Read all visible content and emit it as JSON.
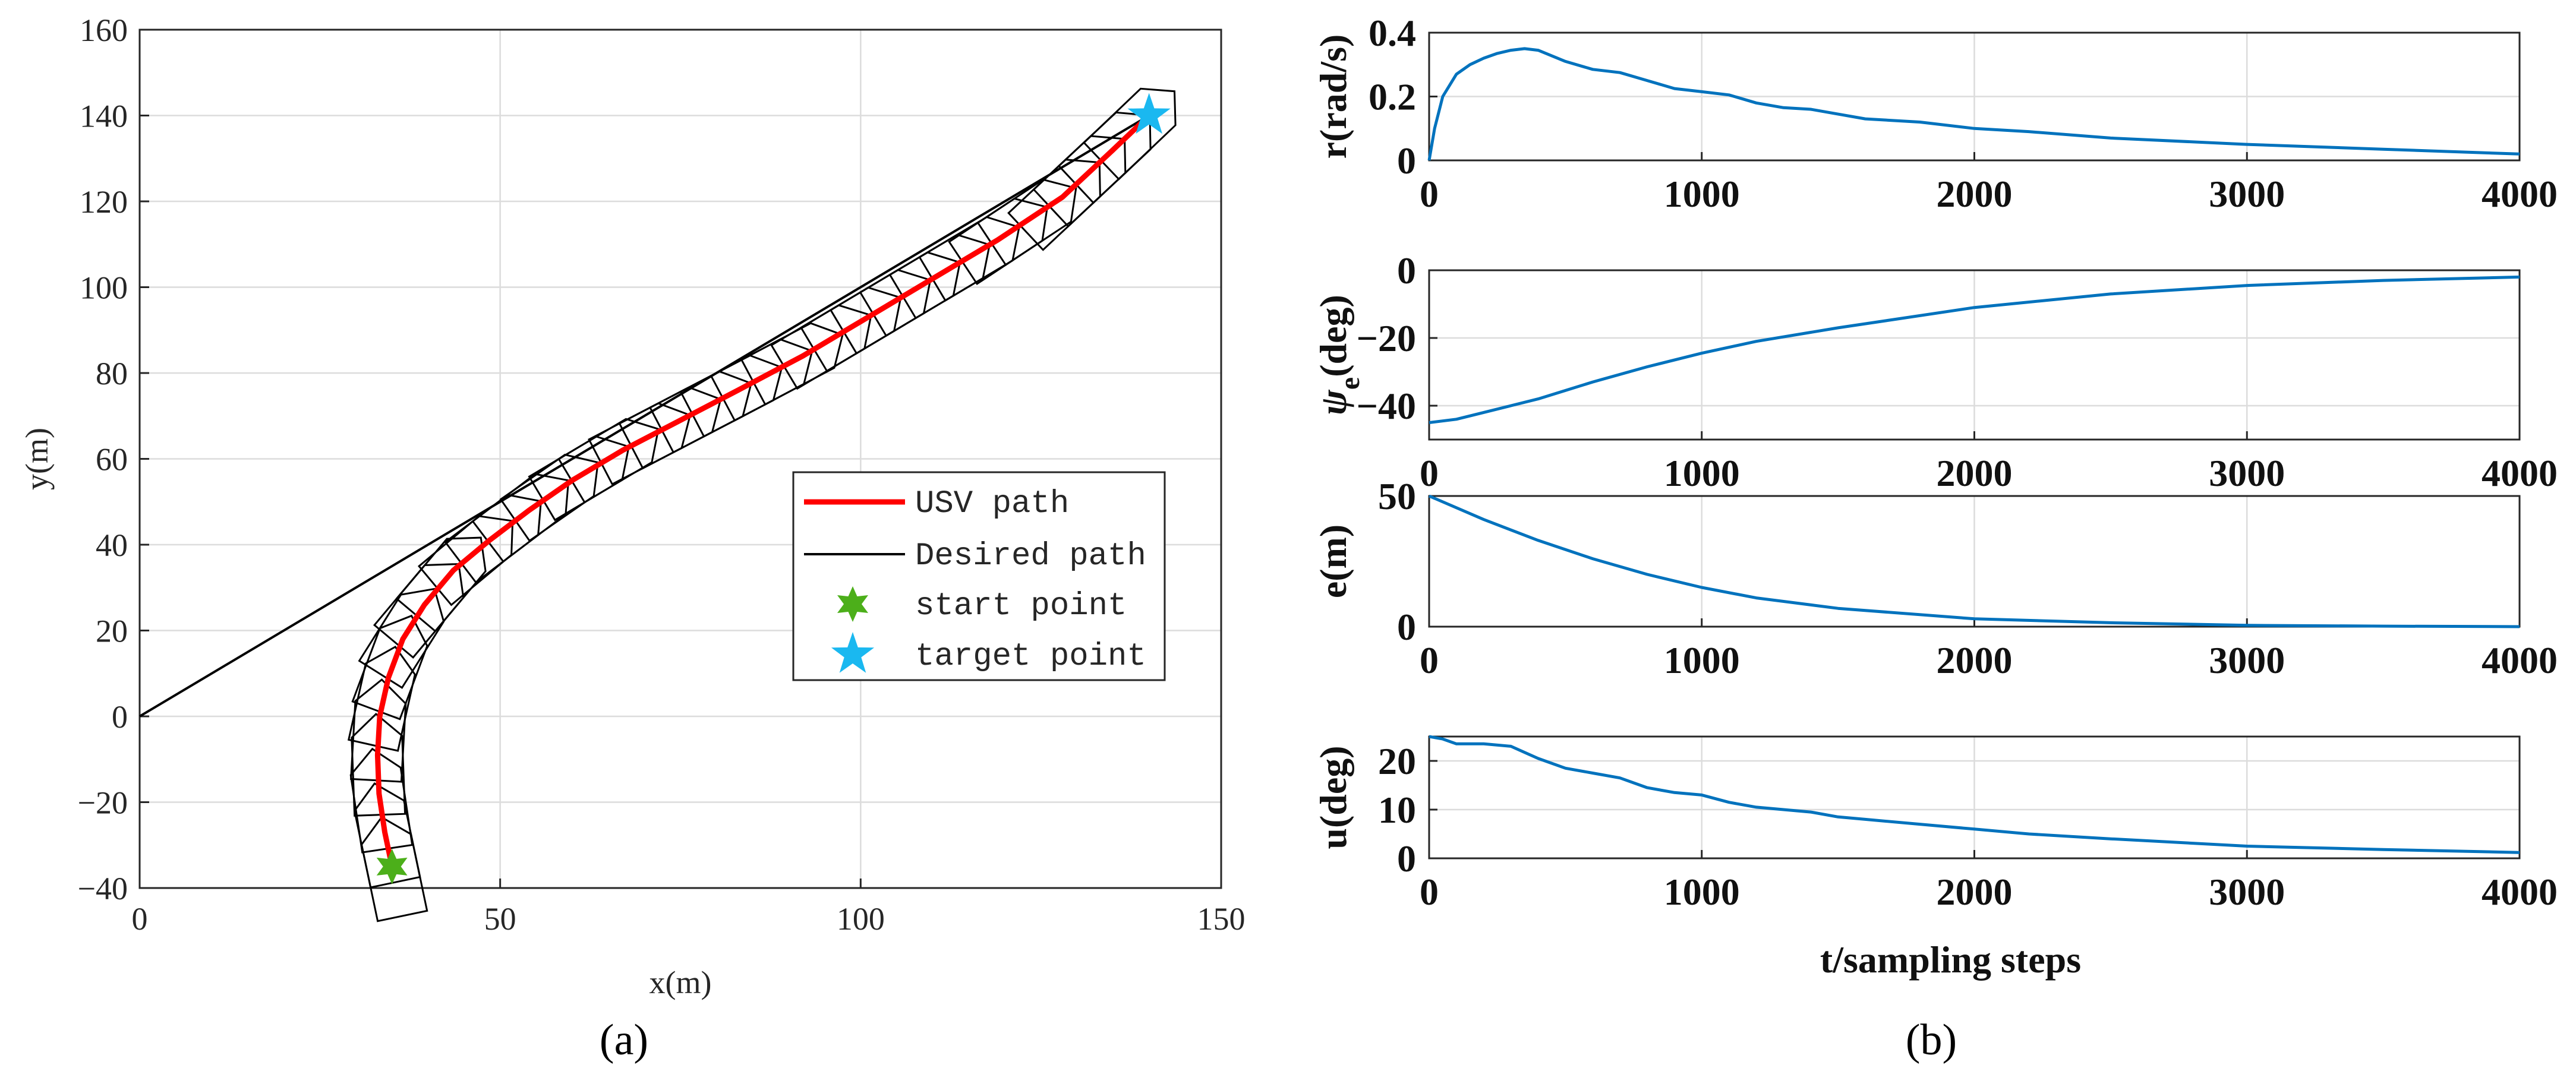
{
  "panel_a": {
    "caption_label": "(a)"
  },
  "panel_b": {
    "caption_label": "(b)"
  },
  "colors": {
    "usv_path": "#ff0000",
    "desired_path": "#000000",
    "hull_outline": "#000000",
    "start_marker": "#4caf1a",
    "target_marker": "#1ab8f0",
    "series_b": "#0072bd",
    "grid": "#dcdcdc"
  },
  "chart_data": [
    {
      "type": "line",
      "xlabel": "x(m)",
      "ylabel": "y(m)",
      "xlim": [
        0,
        150
      ],
      "ylim": [
        -40,
        160
      ],
      "xticks": [
        0,
        50,
        100,
        150
      ],
      "yticks": [
        -40,
        -20,
        0,
        20,
        40,
        60,
        80,
        100,
        120,
        140,
        160
      ],
      "grid": true,
      "legend_position": "lower-right",
      "series": [
        {
          "name": "USV path",
          "x": [
            35,
            34,
            33.2,
            33,
            33.3,
            34.5,
            36.5,
            39.5,
            43.5,
            48.5,
            54,
            60,
            67,
            75,
            83,
            92,
            101,
            110,
            119,
            128,
            135,
            140
          ],
          "y": [
            -35,
            -27,
            -18,
            -9,
            0,
            9,
            18,
            26,
            34,
            41,
            48,
            55,
            62,
            69,
            76,
            84,
            93,
            102,
            111,
            121,
            132,
            140
          ]
        },
        {
          "name": "Desired path",
          "x": [
            0,
            140
          ],
          "y": [
            0,
            140
          ]
        },
        {
          "name": "start point",
          "x": [
            35
          ],
          "y": [
            -35
          ]
        },
        {
          "name": "target point",
          "x": [
            140
          ],
          "y": [
            140
          ]
        }
      ]
    },
    {
      "type": "line",
      "ylabel": "r(rad/s)",
      "xlim": [
        0,
        4000
      ],
      "ylim": [
        0,
        0.4
      ],
      "xticks": [
        0,
        1000,
        2000,
        3000,
        4000
      ],
      "yticks": [
        0,
        0.2,
        0.4
      ],
      "ytick_labels": [
        "0",
        "0.2",
        "0.4"
      ],
      "grid": true,
      "series": [
        {
          "x": [
            0,
            20,
            50,
            100,
            150,
            200,
            250,
            300,
            350,
            400,
            500,
            600,
            700,
            800,
            900,
            1000,
            1100,
            1200,
            1300,
            1400,
            1500,
            1600,
            1800,
            2000,
            2200,
            2500,
            3000,
            3500,
            4000
          ],
          "values": [
            0,
            0.1,
            0.2,
            0.27,
            0.3,
            0.32,
            0.335,
            0.345,
            0.35,
            0.345,
            0.31,
            0.285,
            0.275,
            0.25,
            0.225,
            0.215,
            0.205,
            0.18,
            0.165,
            0.16,
            0.145,
            0.13,
            0.12,
            0.1,
            0.09,
            0.07,
            0.05,
            0.035,
            0.02
          ]
        }
      ]
    },
    {
      "type": "line",
      "ylabel": "ψ",
      "ylabel_sub": "e",
      "ylabel_unit": "(deg)",
      "xlim": [
        0,
        4000
      ],
      "ylim": [
        -50,
        0
      ],
      "xticks": [
        0,
        1000,
        2000,
        3000,
        4000
      ],
      "yticks": [
        -40,
        -20,
        0
      ],
      "ytick_labels": [
        "−40",
        "−20",
        "0"
      ],
      "grid": true,
      "series": [
        {
          "x": [
            0,
            100,
            200,
            300,
            400,
            500,
            600,
            800,
            1000,
            1200,
            1500,
            2000,
            2500,
            3000,
            3500,
            4000
          ],
          "values": [
            -45,
            -44,
            -42,
            -40,
            -38,
            -35.5,
            -33,
            -28.5,
            -24.5,
            -21,
            -17,
            -11,
            -7,
            -4.5,
            -3,
            -2
          ]
        }
      ]
    },
    {
      "type": "line",
      "ylabel": "e(m)",
      "xlim": [
        0,
        4000
      ],
      "ylim": [
        0,
        50
      ],
      "xticks": [
        0,
        1000,
        2000,
        3000,
        4000
      ],
      "yticks": [
        0,
        50
      ],
      "ytick_labels": [
        "0",
        "50"
      ],
      "grid": true,
      "series": [
        {
          "x": [
            0,
            200,
            400,
            600,
            800,
            1000,
            1200,
            1500,
            2000,
            2500,
            3000,
            3500,
            4000
          ],
          "values": [
            50,
            41,
            33,
            26,
            20,
            15,
            11,
            7,
            3,
            1.5,
            0.5,
            0.2,
            0
          ]
        }
      ]
    },
    {
      "type": "line",
      "ylabel": "u(deg)",
      "xlabel": "t/sampling steps",
      "xlim": [
        0,
        4000
      ],
      "ylim": [
        0,
        25
      ],
      "xticks": [
        0,
        1000,
        2000,
        3000,
        4000
      ],
      "yticks": [
        0,
        10,
        20
      ],
      "ytick_labels": [
        "0",
        "10",
        "20"
      ],
      "grid": true,
      "series": [
        {
          "x": [
            0,
            50,
            100,
            200,
            300,
            400,
            500,
            600,
            700,
            800,
            900,
            1000,
            1100,
            1200,
            1300,
            1400,
            1500,
            1600,
            1800,
            2000,
            2200,
            2500,
            3000,
            3500,
            4000
          ],
          "values": [
            25,
            24.5,
            23.5,
            23.5,
            23,
            20.5,
            18.5,
            17.5,
            16.5,
            14.5,
            13.5,
            13,
            11.5,
            10.5,
            10,
            9.5,
            8.5,
            8,
            7,
            6,
            5,
            4,
            2.5,
            1.8,
            1.2
          ]
        }
      ]
    }
  ]
}
